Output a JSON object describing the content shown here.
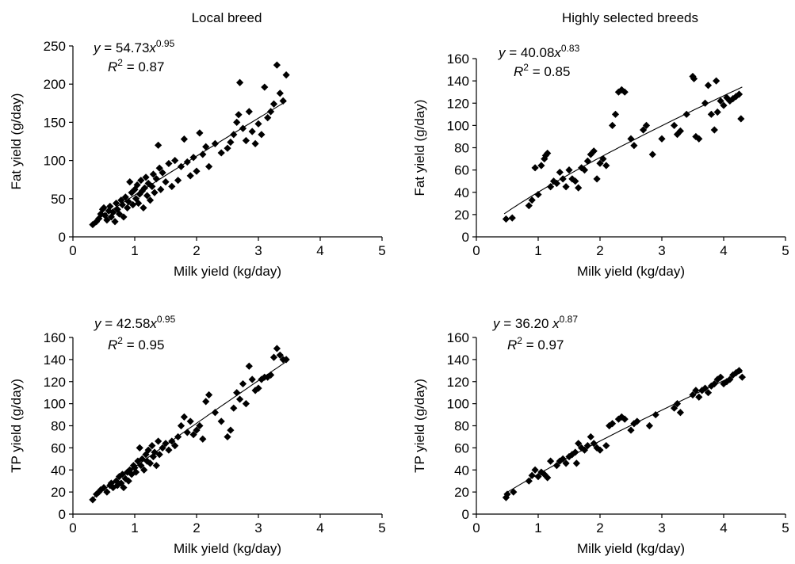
{
  "column_titles": [
    "Local breed",
    "Highly selected breeds"
  ],
  "chart_data": [
    {
      "type": "scatter",
      "title": "Local breed",
      "xlabel": "Milk yield (kg/day)",
      "ylabel": "Fat yield (g/day)",
      "xlim": [
        0,
        5
      ],
      "ylim": [
        0,
        250
      ],
      "xticks": [
        0,
        1,
        2,
        3,
        4,
        5
      ],
      "yticks": [
        0,
        50,
        100,
        150,
        200,
        250
      ],
      "equation": {
        "coef": "54.73",
        "exp": "0.95",
        "r2": "0.87"
      },
      "trend": {
        "coef": 54.73,
        "exp": 0.95,
        "xmin": 0.32,
        "xmax": 3.45
      },
      "points": [
        [
          0.32,
          16
        ],
        [
          0.38,
          20
        ],
        [
          0.42,
          24
        ],
        [
          0.45,
          30
        ],
        [
          0.48,
          36
        ],
        [
          0.5,
          38
        ],
        [
          0.52,
          28
        ],
        [
          0.55,
          22
        ],
        [
          0.58,
          34
        ],
        [
          0.6,
          40
        ],
        [
          0.62,
          26
        ],
        [
          0.65,
          32
        ],
        [
          0.68,
          20
        ],
        [
          0.7,
          44
        ],
        [
          0.72,
          36
        ],
        [
          0.75,
          30
        ],
        [
          0.78,
          48
        ],
        [
          0.8,
          42
        ],
        [
          0.82,
          26
        ],
        [
          0.85,
          52
        ],
        [
          0.88,
          38
        ],
        [
          0.9,
          46
        ],
        [
          0.92,
          72
        ],
        [
          0.95,
          58
        ],
        [
          0.97,
          42
        ],
        [
          1.0,
          62
        ],
        [
          1.02,
          50
        ],
        [
          1.04,
          68
        ],
        [
          1.06,
          44
        ],
        [
          1.08,
          56
        ],
        [
          1.1,
          74
        ],
        [
          1.12,
          60
        ],
        [
          1.14,
          38
        ],
        [
          1.16,
          64
        ],
        [
          1.18,
          78
        ],
        [
          1.2,
          54
        ],
        [
          1.22,
          70
        ],
        [
          1.25,
          48
        ],
        [
          1.28,
          66
        ],
        [
          1.3,
          82
        ],
        [
          1.32,
          58
        ],
        [
          1.35,
          76
        ],
        [
          1.38,
          120
        ],
        [
          1.4,
          90
        ],
        [
          1.42,
          62
        ],
        [
          1.45,
          84
        ],
        [
          1.5,
          72
        ],
        [
          1.55,
          96
        ],
        [
          1.6,
          66
        ],
        [
          1.65,
          100
        ],
        [
          1.7,
          74
        ],
        [
          1.75,
          92
        ],
        [
          1.8,
          128
        ],
        [
          1.85,
          98
        ],
        [
          1.9,
          80
        ],
        [
          1.95,
          104
        ],
        [
          2.0,
          86
        ],
        [
          2.05,
          136
        ],
        [
          2.1,
          108
        ],
        [
          2.15,
          118
        ],
        [
          2.2,
          92
        ],
        [
          2.3,
          122
        ],
        [
          2.4,
          110
        ],
        [
          2.5,
          116
        ],
        [
          2.55,
          124
        ],
        [
          2.6,
          134
        ],
        [
          2.65,
          150
        ],
        [
          2.68,
          160
        ],
        [
          2.7,
          202
        ],
        [
          2.75,
          142
        ],
        [
          2.8,
          126
        ],
        [
          2.85,
          164
        ],
        [
          2.9,
          138
        ],
        [
          2.95,
          122
        ],
        [
          3.0,
          148
        ],
        [
          3.05,
          134
        ],
        [
          3.1,
          196
        ],
        [
          3.15,
          156
        ],
        [
          3.2,
          164
        ],
        [
          3.25,
          174
        ],
        [
          3.3,
          225
        ],
        [
          3.35,
          188
        ],
        [
          3.4,
          178
        ],
        [
          3.45,
          212
        ]
      ]
    },
    {
      "type": "scatter",
      "title": "Highly selected breeds",
      "xlabel": "Milk yield (kg/day)",
      "ylabel": "Fat yield (g/day)",
      "xlim": [
        0,
        5
      ],
      "ylim": [
        0,
        160
      ],
      "xticks": [
        0,
        1,
        2,
        3,
        4,
        5
      ],
      "yticks": [
        0,
        20,
        40,
        60,
        80,
        100,
        120,
        140,
        160
      ],
      "equation": {
        "coef": "40.08",
        "exp": "0.83",
        "r2": "0.85"
      },
      "trend": {
        "coef": 40.08,
        "exp": 0.83,
        "xmin": 0.45,
        "xmax": 4.3
      },
      "points": [
        [
          0.48,
          16
        ],
        [
          0.58,
          17
        ],
        [
          0.85,
          28
        ],
        [
          0.9,
          33
        ],
        [
          0.95,
          62
        ],
        [
          1.0,
          38
        ],
        [
          1.05,
          64
        ],
        [
          1.1,
          70
        ],
        [
          1.12,
          73
        ],
        [
          1.15,
          75
        ],
        [
          1.2,
          45
        ],
        [
          1.25,
          50
        ],
        [
          1.3,
          48
        ],
        [
          1.35,
          58
        ],
        [
          1.4,
          52
        ],
        [
          1.45,
          45
        ],
        [
          1.5,
          60
        ],
        [
          1.55,
          52
        ],
        [
          1.6,
          50
        ],
        [
          1.65,
          44
        ],
        [
          1.7,
          62
        ],
        [
          1.75,
          60
        ],
        [
          1.8,
          68
        ],
        [
          1.85,
          74
        ],
        [
          1.9,
          77
        ],
        [
          1.95,
          52
        ],
        [
          2.0,
          66
        ],
        [
          2.05,
          70
        ],
        [
          2.1,
          64
        ],
        [
          2.2,
          100
        ],
        [
          2.25,
          110
        ],
        [
          2.3,
          130
        ],
        [
          2.35,
          132
        ],
        [
          2.4,
          130
        ],
        [
          2.5,
          88
        ],
        [
          2.55,
          82
        ],
        [
          2.7,
          96
        ],
        [
          2.75,
          100
        ],
        [
          2.85,
          74
        ],
        [
          3.0,
          88
        ],
        [
          3.2,
          100
        ],
        [
          3.25,
          92
        ],
        [
          3.3,
          95
        ],
        [
          3.4,
          110
        ],
        [
          3.5,
          144
        ],
        [
          3.52,
          142
        ],
        [
          3.55,
          90
        ],
        [
          3.6,
          88
        ],
        [
          3.7,
          120
        ],
        [
          3.75,
          136
        ],
        [
          3.8,
          110
        ],
        [
          3.85,
          96
        ],
        [
          3.88,
          140
        ],
        [
          3.9,
          112
        ],
        [
          3.95,
          122
        ],
        [
          4.0,
          118
        ],
        [
          4.05,
          125
        ],
        [
          4.1,
          122
        ],
        [
          4.15,
          124
        ],
        [
          4.2,
          126
        ],
        [
          4.25,
          128
        ],
        [
          4.28,
          106
        ]
      ]
    },
    {
      "type": "scatter",
      "title": "",
      "xlabel": "Milk yield (kg/day)",
      "ylabel": "TP yield (g/day)",
      "xlim": [
        0,
        5
      ],
      "ylim": [
        0,
        160
      ],
      "xticks": [
        0,
        1,
        2,
        3,
        4,
        5
      ],
      "yticks": [
        0,
        20,
        40,
        60,
        80,
        100,
        120,
        140,
        160
      ],
      "equation": {
        "coef": "42.58",
        "exp": "0.95",
        "r2": "0.95"
      },
      "trend": {
        "coef": 42.58,
        "exp": 0.95,
        "xmin": 0.32,
        "xmax": 3.45
      },
      "points": [
        [
          0.32,
          13
        ],
        [
          0.38,
          18
        ],
        [
          0.42,
          20
        ],
        [
          0.45,
          22
        ],
        [
          0.5,
          24
        ],
        [
          0.55,
          20
        ],
        [
          0.6,
          26
        ],
        [
          0.62,
          28
        ],
        [
          0.65,
          24
        ],
        [
          0.7,
          30
        ],
        [
          0.72,
          26
        ],
        [
          0.75,
          34
        ],
        [
          0.78,
          28
        ],
        [
          0.8,
          36
        ],
        [
          0.82,
          24
        ],
        [
          0.85,
          32
        ],
        [
          0.88,
          38
        ],
        [
          0.9,
          30
        ],
        [
          0.92,
          40
        ],
        [
          0.95,
          36
        ],
        [
          0.98,
          44
        ],
        [
          1.0,
          42
        ],
        [
          1.02,
          38
        ],
        [
          1.05,
          48
        ],
        [
          1.08,
          60
        ],
        [
          1.1,
          44
        ],
        [
          1.12,
          50
        ],
        [
          1.15,
          40
        ],
        [
          1.18,
          54
        ],
        [
          1.2,
          48
        ],
        [
          1.22,
          58
        ],
        [
          1.25,
          46
        ],
        [
          1.28,
          62
        ],
        [
          1.3,
          52
        ],
        [
          1.32,
          56
        ],
        [
          1.35,
          44
        ],
        [
          1.38,
          66
        ],
        [
          1.4,
          54
        ],
        [
          1.45,
          60
        ],
        [
          1.5,
          64
        ],
        [
          1.55,
          58
        ],
        [
          1.6,
          66
        ],
        [
          1.65,
          62
        ],
        [
          1.7,
          70
        ],
        [
          1.75,
          80
        ],
        [
          1.8,
          88
        ],
        [
          1.85,
          74
        ],
        [
          1.9,
          84
        ],
        [
          1.95,
          72
        ],
        [
          2.0,
          76
        ],
        [
          2.05,
          80
        ],
        [
          2.1,
          68
        ],
        [
          2.15,
          102
        ],
        [
          2.2,
          108
        ],
        [
          2.3,
          92
        ],
        [
          2.4,
          84
        ],
        [
          2.5,
          70
        ],
        [
          2.55,
          76
        ],
        [
          2.6,
          96
        ],
        [
          2.65,
          110
        ],
        [
          2.7,
          104
        ],
        [
          2.75,
          118
        ],
        [
          2.8,
          100
        ],
        [
          2.85,
          134
        ],
        [
          2.9,
          122
        ],
        [
          2.95,
          112
        ],
        [
          3.0,
          114
        ],
        [
          3.05,
          122
        ],
        [
          3.1,
          124
        ],
        [
          3.15,
          124
        ],
        [
          3.2,
          126
        ],
        [
          3.25,
          142
        ],
        [
          3.3,
          150
        ],
        [
          3.35,
          144
        ],
        [
          3.4,
          140
        ],
        [
          3.45,
          140
        ]
      ]
    },
    {
      "type": "scatter",
      "title": "",
      "xlabel": "Milk yield (kg/day)",
      "ylabel": "TP yield (g/day)",
      "xlim": [
        0,
        5
      ],
      "ylim": [
        0,
        160
      ],
      "xticks": [
        0,
        1,
        2,
        3,
        4,
        5
      ],
      "yticks": [
        0,
        20,
        40,
        60,
        80,
        100,
        120,
        140,
        160
      ],
      "equation": {
        "coef": "36.20 ",
        "exp": "0.87",
        "r2": "0.97"
      },
      "trend": {
        "coef": 36.2,
        "exp": 0.87,
        "xmin": 0.45,
        "xmax": 4.3
      },
      "points": [
        [
          0.48,
          15
        ],
        [
          0.5,
          18
        ],
        [
          0.6,
          20
        ],
        [
          0.85,
          30
        ],
        [
          0.9,
          35
        ],
        [
          0.95,
          40
        ],
        [
          1.0,
          34
        ],
        [
          1.05,
          38
        ],
        [
          1.1,
          36
        ],
        [
          1.15,
          33
        ],
        [
          1.2,
          48
        ],
        [
          1.3,
          44
        ],
        [
          1.35,
          48
        ],
        [
          1.4,
          50
        ],
        [
          1.45,
          46
        ],
        [
          1.5,
          52
        ],
        [
          1.55,
          54
        ],
        [
          1.6,
          56
        ],
        [
          1.62,
          46
        ],
        [
          1.65,
          64
        ],
        [
          1.7,
          60
        ],
        [
          1.75,
          58
        ],
        [
          1.8,
          62
        ],
        [
          1.85,
          70
        ],
        [
          1.9,
          64
        ],
        [
          1.95,
          60
        ],
        [
          2.0,
          58
        ],
        [
          2.1,
          62
        ],
        [
          2.15,
          80
        ],
        [
          2.2,
          82
        ],
        [
          2.3,
          86
        ],
        [
          2.35,
          88
        ],
        [
          2.4,
          86
        ],
        [
          2.5,
          76
        ],
        [
          2.55,
          82
        ],
        [
          2.6,
          84
        ],
        [
          2.8,
          80
        ],
        [
          2.9,
          90
        ],
        [
          3.2,
          96
        ],
        [
          3.25,
          100
        ],
        [
          3.3,
          92
        ],
        [
          3.5,
          108
        ],
        [
          3.55,
          112
        ],
        [
          3.6,
          106
        ],
        [
          3.65,
          112
        ],
        [
          3.7,
          114
        ],
        [
          3.75,
          110
        ],
        [
          3.8,
          116
        ],
        [
          3.85,
          118
        ],
        [
          3.9,
          122
        ],
        [
          3.95,
          124
        ],
        [
          4.0,
          118
        ],
        [
          4.05,
          120
        ],
        [
          4.1,
          122
        ],
        [
          4.15,
          126
        ],
        [
          4.2,
          128
        ],
        [
          4.25,
          130
        ],
        [
          4.3,
          124
        ]
      ]
    }
  ]
}
